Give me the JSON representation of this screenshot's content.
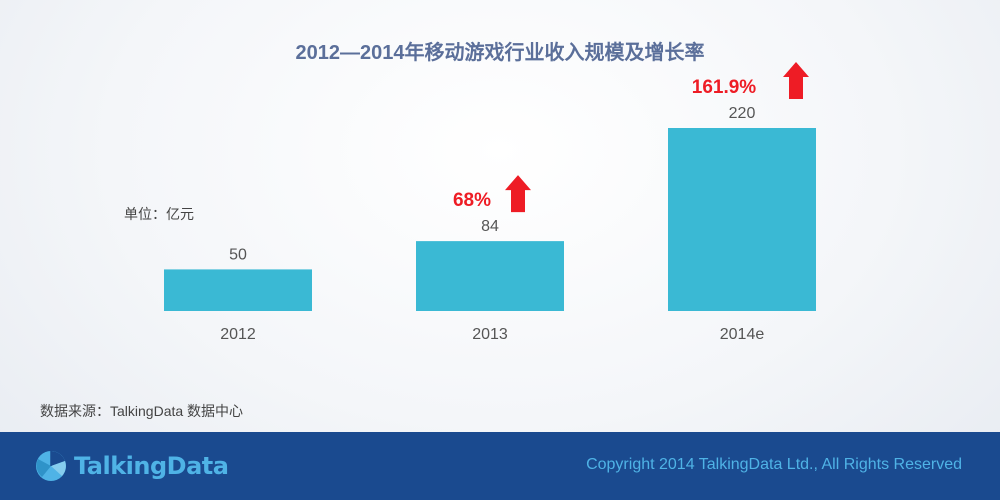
{
  "title": "2012—2014年移动游戏行业收入规模及增长率",
  "unit_label": "单位：亿元",
  "source_label": "数据来源：TalkingData 数据中心",
  "footer": {
    "logo_text": "TalkingData",
    "copyright": "Copyright 2014 TalkingData Ltd., All Rights Reserved"
  },
  "colors": {
    "bar": "#3ab9d4",
    "title": "#5b6f9a",
    "growth": "#ee1c25",
    "footer_bg": "#1a4a8f",
    "footer_text": "#4fb3e6"
  },
  "chart_data": {
    "type": "bar",
    "title": "2012—2014年移动游戏行业收入规模及增长率",
    "ylabel": "单位：亿元",
    "categories": [
      "2012",
      "2013",
      "2014e"
    ],
    "values": [
      50,
      84,
      220
    ],
    "value_labels": [
      "50",
      "84",
      "220"
    ],
    "growth_labels": [
      "",
      "68%",
      "161.9%"
    ],
    "ylim": [
      0,
      220
    ],
    "grid": false,
    "legend": "none"
  }
}
